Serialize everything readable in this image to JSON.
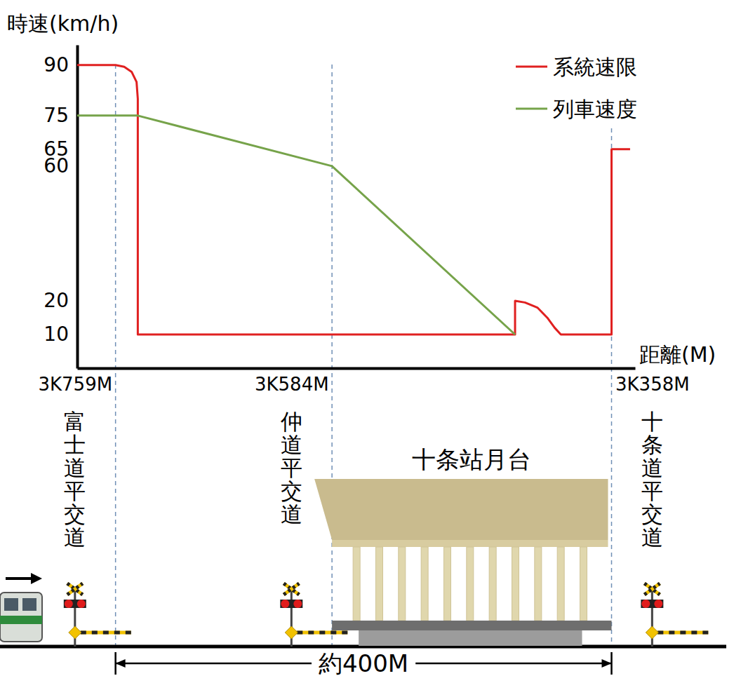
{
  "chart_data": {
    "type": "line",
    "y_label": "時速(km/h)",
    "x_label": "距離(M)",
    "xlim": [
      3790,
      3339
    ],
    "ylim": [
      0,
      96
    ],
    "xticks": [
      {
        "value": 3759,
        "label": "3K759M"
      },
      {
        "value": 3584,
        "label": "3K584M"
      },
      {
        "value": 3358,
        "label": "3K358M"
      }
    ],
    "yticks": [
      10,
      20,
      60,
      65,
      75,
      90
    ],
    "legend": "top-right",
    "series": [
      {
        "name": "系統速限",
        "color": "#e02020",
        "x": [
          3790,
          3759,
          3752,
          3746,
          3742,
          3741,
          3741,
          3436,
          3436,
          3428,
          3418,
          3410,
          3404,
          3399,
          3358,
          3358,
          3343
        ],
        "values": [
          90,
          90,
          89.5,
          88,
          85,
          80,
          10,
          10,
          20,
          19.5,
          18,
          15,
          12,
          10,
          10,
          65,
          65
        ]
      },
      {
        "name": "列車速度",
        "color": "#76a34a",
        "x": [
          3790,
          3741,
          3584,
          3436
        ],
        "values": [
          75,
          75,
          60,
          10
        ]
      }
    ]
  },
  "diagram": {
    "platform_label": "十条站月台",
    "crossings": [
      "富士道平交道",
      "仲道平交道",
      "十条道平交道"
    ],
    "span_label": "約400M"
  }
}
